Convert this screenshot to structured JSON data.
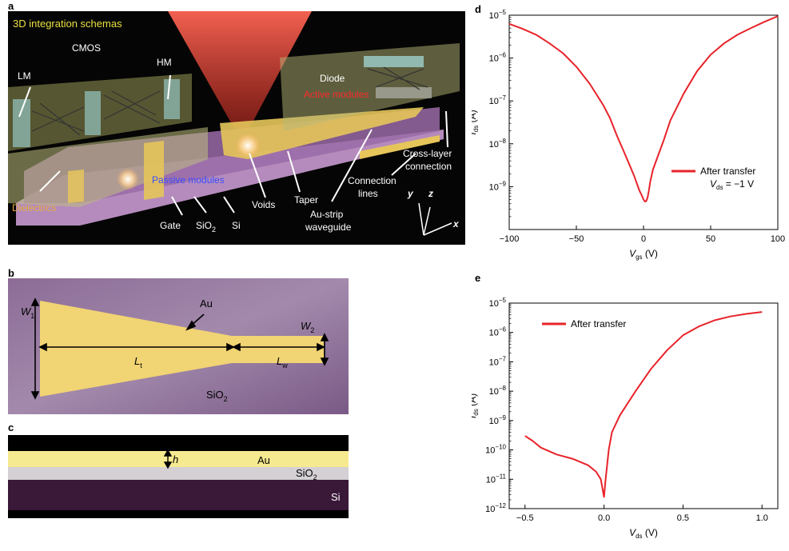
{
  "panels": {
    "a": {
      "letter": "a",
      "title": "3D integration schemas",
      "labels": {
        "lm": "LM",
        "cmos": "CMOS",
        "hm": "HM",
        "diode": "Diode",
        "active_modules": "Active modules",
        "passive_modules": "Passive modules",
        "dielectrics": "Dielectrics",
        "gate": "Gate",
        "sio2_base": "SiO",
        "sio2_sub": "2",
        "si": "Si",
        "voids": "Voids",
        "taper": "Taper",
        "au_strip_1": "Au-strip",
        "au_strip_2": "waveguide",
        "connection_1": "Connection",
        "connection_2": "lines",
        "crosslayer_1": "Cross-layer",
        "crosslayer_2": "connection",
        "axis_x": "x",
        "axis_y": "y",
        "axis_z": "z"
      }
    },
    "b": {
      "letter": "b",
      "au": "Au",
      "w1": "W",
      "w1_sub": "1",
      "w2": "W",
      "w2_sub": "2",
      "lt": "L",
      "lt_sub": "t",
      "lw": "L",
      "lw_sub": "w",
      "sio2": "SiO",
      "sio2_sub": "2"
    },
    "c": {
      "letter": "c",
      "h": "h",
      "au": "Au",
      "sio2": "SiO",
      "sio2_sub": "2",
      "si": "Si"
    }
  },
  "chart_data": [
    {
      "panel": "d",
      "type": "line",
      "xscale": "linear",
      "yscale": "log",
      "xlim": [
        -100,
        100
      ],
      "ylim": [
        1e-10,
        1e-05
      ],
      "xticks": [
        -100,
        -50,
        0,
        50,
        100
      ],
      "xtick_labels": [
        "−100",
        "−50",
        "0",
        "50",
        "100"
      ],
      "ytick_exponents": [
        -9,
        -8,
        -7,
        -6,
        -5
      ],
      "xlabel": "V",
      "xlabel_sub": "gs",
      "xlabel_unit": " (V)",
      "ylabel": "I",
      "ylabel_sub": "ds",
      "ylabel_unit": " (A)",
      "legend": "upper-right-middle",
      "legend_line2": "V",
      "legend_line2_sub": "ds",
      "legend_line2_rest": " = −1 V",
      "grid": false,
      "series": [
        {
          "name": "After transfer",
          "color": "#e8232a",
          "x": [
            -100,
            -95,
            -90,
            -80,
            -70,
            -60,
            -50,
            -40,
            -30,
            -25,
            -20,
            -15,
            -10,
            -7,
            -5,
            -3,
            -1,
            0,
            1,
            2,
            3,
            4,
            5,
            7,
            10,
            15,
            20,
            30,
            40,
            50,
            60,
            70,
            80,
            90,
            100
          ],
          "y": [
            6.3e-06,
            5.5e-06,
            4.8e-06,
            3.5e-06,
            2.2e-06,
            1.3e-06,
            6.3e-07,
            2.5e-07,
            8e-08,
            4e-08,
            1.6e-08,
            7e-09,
            3e-09,
            1.8e-09,
            1.2e-09,
            8e-10,
            6e-10,
            5e-10,
            4.5e-10,
            4.6e-10,
            5.5e-10,
            8e-10,
            1.3e-09,
            2.5e-09,
            4.5e-09,
            1.2e-08,
            3.5e-08,
            1.5e-07,
            5e-07,
            1.2e-06,
            2.2e-06,
            3.5e-06,
            5e-06,
            7e-06,
            9.5e-06
          ]
        }
      ]
    },
    {
      "panel": "e",
      "type": "line",
      "xscale": "linear",
      "yscale": "log",
      "xlim": [
        -0.6,
        1.1
      ],
      "ylim": [
        1e-12,
        1e-05
      ],
      "xticks": [
        -0.5,
        0.0,
        0.5,
        1.0
      ],
      "xtick_labels": [
        "−0.5",
        "0.0",
        "0.5",
        "1.0"
      ],
      "ytick_exponents": [
        -12,
        -11,
        -10,
        -9,
        -8,
        -7,
        -6,
        -5
      ],
      "xlabel": "V",
      "xlabel_sub": "ds",
      "xlabel_unit": " (V)",
      "ylabel": "I",
      "ylabel_sub": "ds",
      "ylabel_unit": " (A)",
      "legend": "top-left",
      "grid": false,
      "series": [
        {
          "name": "After transfer",
          "color": "#e8232a",
          "x": [
            -0.5,
            -0.45,
            -0.4,
            -0.3,
            -0.2,
            -0.1,
            -0.05,
            -0.02,
            0.0,
            0.01,
            0.03,
            0.05,
            0.1,
            0.2,
            0.3,
            0.4,
            0.5,
            0.6,
            0.7,
            0.8,
            0.9,
            1.0
          ],
          "y": [
            3e-10,
            2e-10,
            1.2e-10,
            7e-11,
            5e-11,
            3e-11,
            1.8e-11,
            1e-11,
            2.5e-12,
            1e-11,
            1e-10,
            4e-10,
            1.5e-09,
            1e-08,
            6e-08,
            2.5e-07,
            8e-07,
            1.6e-06,
            2.6e-06,
            3.5e-06,
            4.3e-06,
            5e-06
          ]
        }
      ]
    }
  ]
}
